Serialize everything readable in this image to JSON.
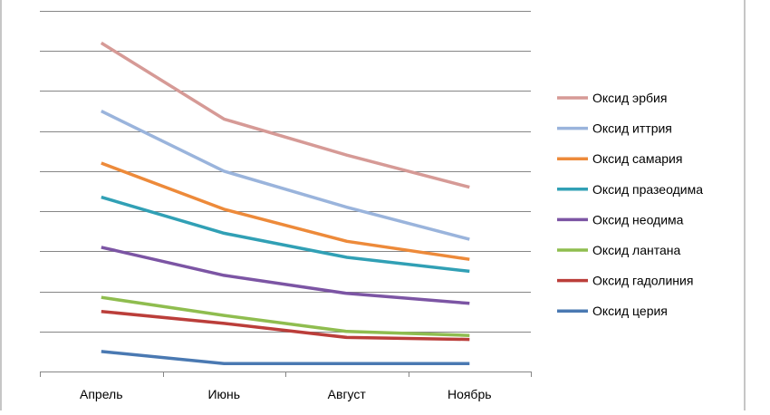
{
  "chart_data": {
    "type": "line",
    "categories": [
      "Апрель",
      "Июнь",
      "Август",
      "Ноябрь"
    ],
    "title": "",
    "xlabel": "",
    "ylabel": "",
    "ylim": [
      0,
      9
    ],
    "grid": true,
    "legend_position": "right",
    "series": [
      {
        "name": "Оксид эрбия",
        "color": "#d69a96",
        "values": [
          8.2,
          6.3,
          5.4,
          4.6
        ]
      },
      {
        "name": "Оксид иттрия",
        "color": "#9ab4dc",
        "values": [
          6.5,
          5.0,
          4.1,
          3.3
        ]
      },
      {
        "name": "Оксид самария",
        "color": "#ed8a3a",
        "values": [
          5.2,
          4.05,
          3.25,
          2.8
        ]
      },
      {
        "name": "Оксид празеодима",
        "color": "#31a0b5",
        "values": [
          4.35,
          3.45,
          2.85,
          2.5
        ]
      },
      {
        "name": "Оксид неодима",
        "color": "#7c55a4",
        "values": [
          3.1,
          2.4,
          1.95,
          1.7
        ]
      },
      {
        "name": "Оксид лантана",
        "color": "#8fbd4f",
        "values": [
          1.85,
          1.4,
          1.0,
          0.9
        ]
      },
      {
        "name": "Оксид гадолиния",
        "color": "#bb3e3a",
        "values": [
          1.5,
          1.2,
          0.85,
          0.8
        ]
      },
      {
        "name": "Оксид церия",
        "color": "#4a79b2",
        "values": [
          0.5,
          0.2,
          0.2,
          0.2
        ]
      }
    ]
  }
}
